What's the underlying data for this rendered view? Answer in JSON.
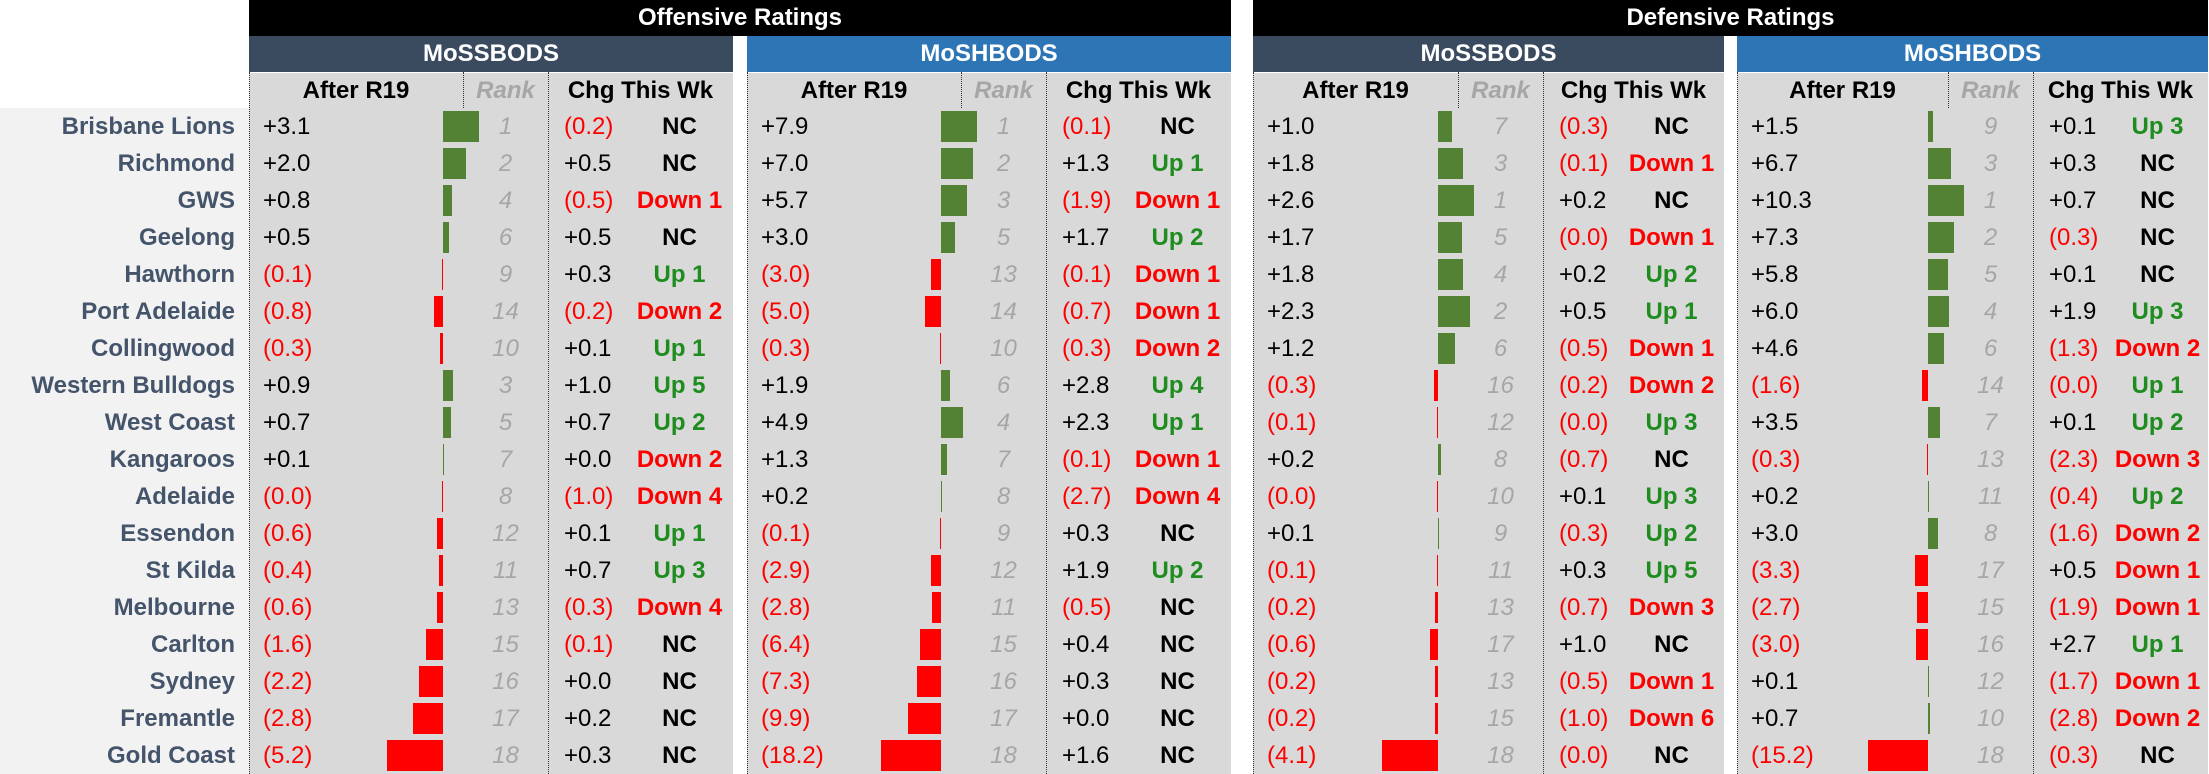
{
  "headers": {
    "offensive": "Offensive Ratings",
    "defensive": "Defensive Ratings",
    "mossbods": "MoSSBODS",
    "moshbods": "MoSHBODS",
    "after": "After R19",
    "rank": "Rank",
    "chg": "Chg This Wk"
  },
  "colors": {
    "positive_bar": "#548235",
    "negative_bar": "#ff0000",
    "up": "#1e8c1e",
    "down": "#ff0000"
  },
  "teams": [
    {
      "name": "Brisbane Lions",
      "p": [
        {
          "v": 3.1,
          "r": 1,
          "c": -0.2,
          "s": "NC"
        },
        {
          "v": 7.9,
          "r": 1,
          "c": -0.1,
          "s": "NC"
        },
        {
          "v": 1.0,
          "r": 7,
          "c": -0.3,
          "s": "NC"
        },
        {
          "v": 1.5,
          "r": 9,
          "c": 0.1,
          "s": "Up 3"
        }
      ]
    },
    {
      "name": "Richmond",
      "p": [
        {
          "v": 2.0,
          "r": 2,
          "c": 0.5,
          "s": "NC"
        },
        {
          "v": 7.0,
          "r": 2,
          "c": 1.3,
          "s": "Up 1"
        },
        {
          "v": 1.8,
          "r": 3,
          "c": -0.1,
          "s": "Down 1"
        },
        {
          "v": 6.7,
          "r": 3,
          "c": 0.3,
          "s": "NC"
        }
      ]
    },
    {
      "name": "GWS",
      "p": [
        {
          "v": 0.8,
          "r": 4,
          "c": -0.5,
          "s": "Down 1"
        },
        {
          "v": 5.7,
          "r": 3,
          "c": -1.9,
          "s": "Down 1"
        },
        {
          "v": 2.6,
          "r": 1,
          "c": 0.2,
          "s": "NC"
        },
        {
          "v": 10.3,
          "r": 1,
          "c": 0.7,
          "s": "NC"
        }
      ]
    },
    {
      "name": "Geelong",
      "p": [
        {
          "v": 0.5,
          "r": 6,
          "c": 0.5,
          "s": "NC"
        },
        {
          "v": 3.0,
          "r": 5,
          "c": 1.7,
          "s": "Up 2"
        },
        {
          "v": 1.7,
          "r": 5,
          "c": -0.0,
          "s": "Down 1"
        },
        {
          "v": 7.3,
          "r": 2,
          "c": -0.3,
          "s": "NC"
        }
      ]
    },
    {
      "name": "Hawthorn",
      "p": [
        {
          "v": -0.1,
          "r": 9,
          "c": 0.3,
          "s": "Up 1"
        },
        {
          "v": -3.0,
          "r": 13,
          "c": -0.1,
          "s": "Down 1"
        },
        {
          "v": 1.8,
          "r": 4,
          "c": 0.2,
          "s": "Up 2"
        },
        {
          "v": 5.8,
          "r": 5,
          "c": 0.1,
          "s": "NC"
        }
      ]
    },
    {
      "name": "Port Adelaide",
      "p": [
        {
          "v": -0.8,
          "r": 14,
          "c": -0.2,
          "s": "Down 2"
        },
        {
          "v": -5.0,
          "r": 14,
          "c": -0.7,
          "s": "Down 1"
        },
        {
          "v": 2.3,
          "r": 2,
          "c": 0.5,
          "s": "Up 1"
        },
        {
          "v": 6.0,
          "r": 4,
          "c": 1.9,
          "s": "Up 3"
        }
      ]
    },
    {
      "name": "Collingwood",
      "p": [
        {
          "v": -0.3,
          "r": 10,
          "c": 0.1,
          "s": "Up 1"
        },
        {
          "v": -0.3,
          "r": 10,
          "c": -0.3,
          "s": "Down 2"
        },
        {
          "v": 1.2,
          "r": 6,
          "c": -0.5,
          "s": "Down 1"
        },
        {
          "v": 4.6,
          "r": 6,
          "c": -1.3,
          "s": "Down 2"
        }
      ]
    },
    {
      "name": "Western Bulldogs",
      "p": [
        {
          "v": 0.9,
          "r": 3,
          "c": 1.0,
          "s": "Up 5"
        },
        {
          "v": 1.9,
          "r": 6,
          "c": 2.8,
          "s": "Up 4"
        },
        {
          "v": -0.3,
          "r": 16,
          "c": -0.2,
          "s": "Down 2"
        },
        {
          "v": -1.6,
          "r": 14,
          "c": -0.0,
          "s": "Up 1"
        }
      ]
    },
    {
      "name": "West Coast",
      "p": [
        {
          "v": 0.7,
          "r": 5,
          "c": 0.7,
          "s": "Up 2"
        },
        {
          "v": 4.9,
          "r": 4,
          "c": 2.3,
          "s": "Up 1"
        },
        {
          "v": -0.1,
          "r": 12,
          "c": -0.0,
          "s": "Up 3"
        },
        {
          "v": 3.5,
          "r": 7,
          "c": 0.1,
          "s": "Up 2"
        }
      ]
    },
    {
      "name": "Kangaroos",
      "p": [
        {
          "v": 0.1,
          "r": 7,
          "c": 0.0,
          "s": "Down 2"
        },
        {
          "v": 1.3,
          "r": 7,
          "c": -0.1,
          "s": "Down 1"
        },
        {
          "v": 0.2,
          "r": 8,
          "c": -0.7,
          "s": "NC"
        },
        {
          "v": -0.3,
          "r": 13,
          "c": -2.3,
          "s": "Down 3"
        }
      ]
    },
    {
      "name": "Adelaide",
      "p": [
        {
          "v": -0.0,
          "r": 8,
          "c": -1.0,
          "s": "Down 4"
        },
        {
          "v": 0.2,
          "r": 8,
          "c": -2.7,
          "s": "Down 4"
        },
        {
          "v": -0.0,
          "r": 10,
          "c": 0.1,
          "s": "Up 3"
        },
        {
          "v": 0.2,
          "r": 11,
          "c": -0.4,
          "s": "Up 2"
        }
      ]
    },
    {
      "name": "Essendon",
      "p": [
        {
          "v": -0.6,
          "r": 12,
          "c": 0.1,
          "s": "Up 1"
        },
        {
          "v": -0.1,
          "r": 9,
          "c": 0.3,
          "s": "NC"
        },
        {
          "v": 0.1,
          "r": 9,
          "c": -0.3,
          "s": "Up 2"
        },
        {
          "v": 3.0,
          "r": 8,
          "c": -1.6,
          "s": "Down 2"
        }
      ]
    },
    {
      "name": "St Kilda",
      "p": [
        {
          "v": -0.4,
          "r": 11,
          "c": 0.7,
          "s": "Up 3"
        },
        {
          "v": -2.9,
          "r": 12,
          "c": 1.9,
          "s": "Up 2"
        },
        {
          "v": -0.1,
          "r": 11,
          "c": 0.3,
          "s": "Up 5"
        },
        {
          "v": -3.3,
          "r": 17,
          "c": 0.5,
          "s": "Down 1"
        }
      ]
    },
    {
      "name": "Melbourne",
      "p": [
        {
          "v": -0.6,
          "r": 13,
          "c": -0.3,
          "s": "Down 4"
        },
        {
          "v": -2.8,
          "r": 11,
          "c": -0.5,
          "s": "NC"
        },
        {
          "v": -0.2,
          "r": 13,
          "c": -0.7,
          "s": "Down 3"
        },
        {
          "v": -2.7,
          "r": 15,
          "c": -1.9,
          "s": "Down 1"
        }
      ]
    },
    {
      "name": "Carlton",
      "p": [
        {
          "v": -1.6,
          "r": 15,
          "c": -0.1,
          "s": "NC"
        },
        {
          "v": -6.4,
          "r": 15,
          "c": 0.4,
          "s": "NC"
        },
        {
          "v": -0.6,
          "r": 17,
          "c": 1.0,
          "s": "NC"
        },
        {
          "v": -3.0,
          "r": 16,
          "c": 2.7,
          "s": "Up 1"
        }
      ]
    },
    {
      "name": "Sydney",
      "p": [
        {
          "v": -2.2,
          "r": 16,
          "c": 0.0,
          "s": "NC"
        },
        {
          "v": -7.3,
          "r": 16,
          "c": 0.3,
          "s": "NC"
        },
        {
          "v": -0.2,
          "r": 13,
          "c": -0.5,
          "s": "Down 1"
        },
        {
          "v": 0.1,
          "r": 12,
          "c": -1.7,
          "s": "Down 1"
        }
      ]
    },
    {
      "name": "Fremantle",
      "p": [
        {
          "v": -2.8,
          "r": 17,
          "c": 0.2,
          "s": "NC"
        },
        {
          "v": -9.9,
          "r": 17,
          "c": 0.0,
          "s": "NC"
        },
        {
          "v": -0.2,
          "r": 15,
          "c": -1.0,
          "s": "Down 6"
        },
        {
          "v": 0.7,
          "r": 10,
          "c": -2.8,
          "s": "Down 2"
        }
      ]
    },
    {
      "name": "Gold Coast",
      "p": [
        {
          "v": -5.2,
          "r": 18,
          "c": 0.3,
          "s": "NC"
        },
        {
          "v": -18.2,
          "r": 18,
          "c": 1.6,
          "s": "NC"
        },
        {
          "v": -4.1,
          "r": 18,
          "c": -0.0,
          "s": "NC"
        },
        {
          "v": -15.2,
          "r": 18,
          "c": -0.3,
          "s": "NC"
        }
      ]
    }
  ]
}
